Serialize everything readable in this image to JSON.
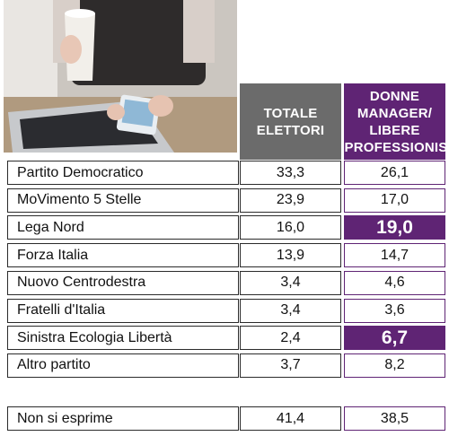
{
  "columns": {
    "totale": "TOTALE ELETTORI",
    "donne": "DONNE MANAGER/ LIBERE PROFESSIONISTE"
  },
  "chart_data": {
    "type": "table",
    "columns": [
      "TOTALE ELETTORI",
      "DONNE MANAGER/ LIBERE PROFESSIONISTE"
    ],
    "rows": [
      {
        "label": "Partito Democratico",
        "totale": "33,3",
        "donne": "26,1",
        "highlight": false
      },
      {
        "label": "MoVimento 5 Stelle",
        "totale": "23,9",
        "donne": "17,0",
        "highlight": false
      },
      {
        "label": "Lega Nord",
        "totale": "16,0",
        "donne": "19,0",
        "highlight": true
      },
      {
        "label": "Forza Italia",
        "totale": "13,9",
        "donne": "14,7",
        "highlight": false
      },
      {
        "label": "Nuovo Centrodestra",
        "totale": "3,4",
        "donne": "4,6",
        "highlight": false
      },
      {
        "label": "Fratelli d'Italia",
        "totale": "3,4",
        "donne": "3,6",
        "highlight": false
      },
      {
        "label": "Sinistra Ecologia Libertà",
        "totale": "2,4",
        "donne": "6,7",
        "highlight": true
      },
      {
        "label": "Altro partito",
        "totale": "3,7",
        "donne": "8,2",
        "highlight": false
      }
    ],
    "footer_row": {
      "label": "Non si esprime",
      "totale": "41,4",
      "donne": "38,5"
    }
  },
  "colors": {
    "accent": "#5f2474",
    "header_gray": "#6b6b6b"
  }
}
